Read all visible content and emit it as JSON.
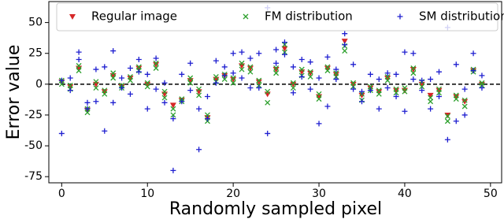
{
  "chart_data": {
    "type": "scatter",
    "xlabel": "Randomly sampled pixel",
    "ylabel": "Error value",
    "xlim": [
      -1.5,
      51.3
    ],
    "ylim": [
      -80,
      67
    ],
    "xticks": [
      0,
      10,
      20,
      30,
      40,
      50
    ],
    "yticks": [
      -75,
      -50,
      -25,
      0,
      25,
      50
    ],
    "reference_line": 0,
    "legend_loc": "upper center",
    "series": [
      {
        "name": "Regular image",
        "color": "#d62728",
        "marker": "triangle_down",
        "x": [
          0,
          1,
          2,
          3,
          4,
          5,
          6,
          7,
          8,
          9,
          10,
          11,
          12,
          13,
          14,
          15,
          16,
          17,
          18,
          19,
          20,
          21,
          22,
          23,
          24,
          25,
          26,
          27,
          28,
          29,
          30,
          31,
          32,
          33,
          34,
          35,
          36,
          37,
          38,
          39,
          40,
          41,
          42,
          43,
          44,
          45,
          46,
          47,
          48,
          49
        ],
        "values": [
          2,
          -2,
          13,
          -21,
          0,
          -6,
          7,
          -2,
          5,
          13,
          0,
          16,
          -8,
          -17,
          -13,
          3,
          -6,
          -27,
          4,
          7,
          4,
          15,
          13,
          2,
          -8,
          12,
          29,
          0,
          10,
          9,
          -10,
          13,
          8,
          35,
          0,
          -9,
          -3,
          -6,
          5,
          -5,
          -5,
          12,
          0,
          -9,
          -5,
          -25,
          -10,
          -14,
          11,
          0
        ]
      },
      {
        "name": "FM distribution",
        "color": "#2ca02c",
        "marker": "x",
        "x": [
          0,
          0,
          1,
          1,
          2,
          2,
          3,
          3,
          4,
          4,
          5,
          5,
          6,
          6,
          7,
          7,
          8,
          8,
          9,
          9,
          10,
          10,
          11,
          11,
          12,
          12,
          13,
          13,
          14,
          14,
          15,
          15,
          16,
          16,
          17,
          17,
          18,
          18,
          19,
          19,
          20,
          20,
          21,
          21,
          22,
          22,
          23,
          23,
          24,
          24,
          25,
          25,
          26,
          26,
          27,
          27,
          28,
          28,
          29,
          29,
          30,
          30,
          31,
          31,
          32,
          32,
          33,
          33,
          34,
          34,
          35,
          35,
          36,
          36,
          37,
          37,
          38,
          38,
          39,
          39,
          40,
          40,
          41,
          41,
          42,
          42,
          43,
          43,
          44,
          44,
          45,
          45,
          46,
          46,
          47,
          47,
          48,
          48,
          49,
          49
        ],
        "values": [
          3,
          0,
          -1,
          -4,
          15,
          11,
          -20,
          -23,
          2,
          -3,
          -5,
          -8,
          9,
          5,
          -1,
          -3,
          6,
          3,
          14,
          11,
          1,
          -2,
          17,
          13,
          -6,
          -11,
          -20,
          -25,
          -12,
          -14,
          5,
          1,
          -4,
          -9,
          -25,
          -30,
          6,
          2,
          8,
          4,
          5,
          1,
          17,
          12,
          14,
          10,
          3,
          -1,
          -6,
          -15,
          13,
          9,
          32,
          26,
          1,
          -3,
          12,
          7,
          10,
          6,
          -8,
          -12,
          14,
          11,
          9,
          6,
          31,
          27,
          1,
          -2,
          -8,
          -13,
          -2,
          -5,
          -5,
          -8,
          6,
          3,
          -4,
          -7,
          -3,
          -6,
          13,
          9,
          2,
          -2,
          -11,
          -14,
          -4,
          -7,
          -26,
          -30,
          -9,
          -12,
          -13,
          -18,
          12,
          10,
          1,
          -1
        ]
      },
      {
        "name": "SM distribution",
        "color": "#1f1fd0",
        "marker": "plus",
        "x": [
          0,
          0,
          1,
          1,
          2,
          2,
          3,
          3,
          4,
          4,
          5,
          5,
          6,
          6,
          7,
          7,
          8,
          8,
          9,
          9,
          10,
          10,
          11,
          11,
          12,
          12,
          13,
          13,
          14,
          14,
          15,
          15,
          16,
          16,
          17,
          17,
          18,
          18,
          19,
          19,
          20,
          20,
          21,
          21,
          22,
          22,
          23,
          23,
          24,
          24,
          25,
          25,
          26,
          26,
          27,
          27,
          28,
          28,
          29,
          29,
          30,
          30,
          31,
          31,
          32,
          32,
          33,
          33,
          34,
          34,
          35,
          35,
          36,
          36,
          37,
          37,
          38,
          38,
          39,
          39,
          40,
          40,
          41,
          41,
          42,
          42,
          43,
          43,
          44,
          44,
          45,
          45,
          46,
          46,
          47,
          47,
          48,
          48,
          49,
          49
        ],
        "values": [
          3,
          -40,
          5,
          -5,
          26,
          20,
          -20,
          -15,
          12,
          -14,
          14,
          -38,
          27,
          -15,
          5,
          -3,
          13,
          -8,
          20,
          10,
          8,
          -20,
          21,
          -4,
          1,
          -15,
          -70,
          -28,
          8,
          -14,
          17,
          -5,
          -53,
          -20,
          -28,
          -10,
          19,
          1,
          14,
          7,
          25,
          9,
          26,
          5,
          21,
          -3,
          25,
          -3,
          62,
          -40,
          28,
          17,
          34,
          24,
          14,
          -7,
          20,
          6,
          18,
          -4,
          5,
          -32,
          22,
          -18,
          12,
          4,
          41,
          32,
          16,
          -4,
          -6,
          -14,
          8,
          -5,
          4,
          -20,
          9,
          -3,
          8,
          -10,
          26,
          -22,
          25,
          4,
          3,
          -5,
          4,
          -20,
          10,
          -10,
          46,
          -45,
          16,
          -30,
          -4,
          -25,
          25,
          11,
          7,
          -3
        ]
      }
    ]
  }
}
